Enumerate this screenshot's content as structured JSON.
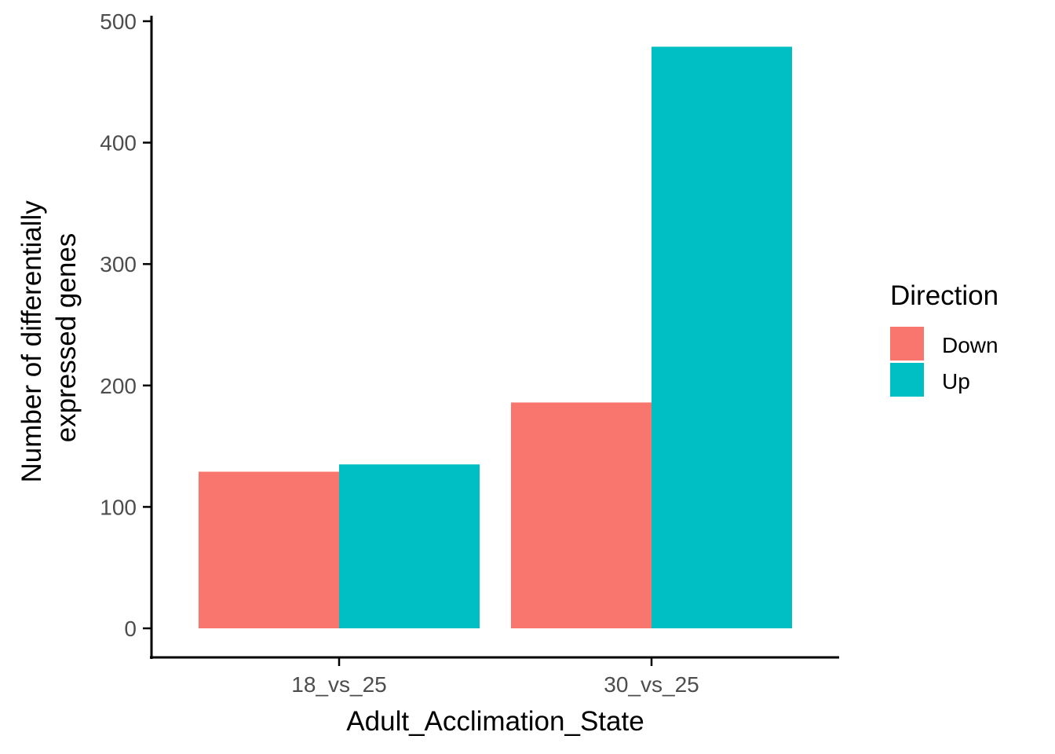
{
  "chart_data": {
    "type": "bar",
    "categories": [
      "18_vs_25",
      "30_vs_25"
    ],
    "series": [
      {
        "name": "Down",
        "values": [
          129,
          186
        ],
        "color": "#F8766D"
      },
      {
        "name": "Up",
        "values": [
          135,
          479
        ],
        "color": "#00BFC4"
      }
    ],
    "title": "",
    "xlabel": "Adult_Acclimation_State",
    "ylabel_lines": [
      "Number of differentially",
      "expressed genes"
    ],
    "ylim": [
      0,
      500
    ],
    "yticks": [
      0,
      100,
      200,
      300,
      400,
      500
    ],
    "grid": false,
    "legend": {
      "title": "Direction",
      "placement": "right"
    }
  }
}
